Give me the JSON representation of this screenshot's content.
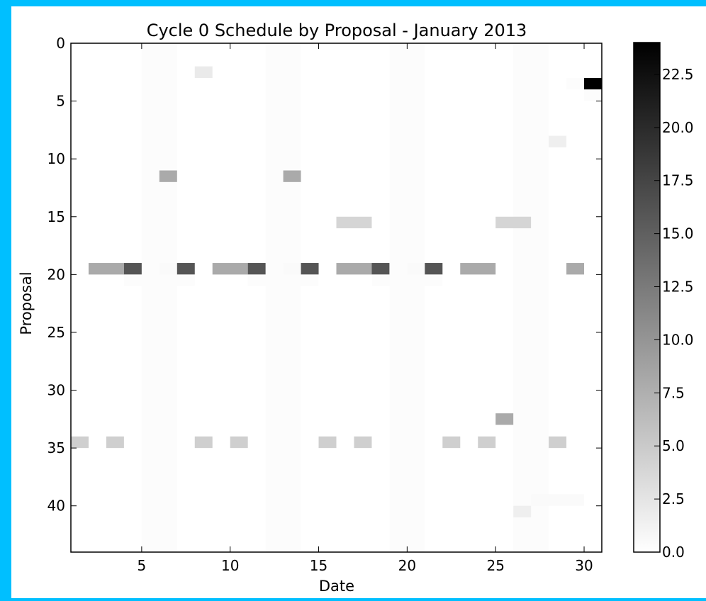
{
  "chart_data": {
    "type": "heatmap",
    "title": "Cycle 0 Schedule by Proposal - January 2013",
    "xlabel": "Date",
    "ylabel": "Proposal",
    "xlim": [
      1,
      31
    ],
    "ylim": [
      44,
      0
    ],
    "x_ticks": [
      5,
      10,
      15,
      20,
      25,
      30
    ],
    "y_ticks": [
      0,
      5,
      10,
      15,
      20,
      25,
      30,
      35,
      40
    ],
    "grid": false,
    "colormap": "gray_r",
    "colorbar": {
      "range": [
        0,
        24
      ],
      "ticks": [
        "0.0",
        "2.5",
        "5.0",
        "7.5",
        "10.0",
        "12.5",
        "15.0",
        "17.5",
        "20.0",
        "22.5"
      ]
    },
    "background_bands": {
      "x_start": [
        5,
        12,
        19,
        26
      ],
      "width": 2,
      "value": 0.3
    },
    "cells": [
      {
        "x": 8,
        "y": 2,
        "w": 1,
        "value": 2.0
      },
      {
        "x": 29,
        "y": 3,
        "w": 1,
        "value": 0.3
      },
      {
        "x": 30,
        "y": 3,
        "w": 1,
        "value": 24.0
      },
      {
        "x": 30,
        "y": 4,
        "w": 1,
        "value": 0.3
      },
      {
        "x": 28,
        "y": 8,
        "w": 1,
        "value": 1.5
      },
      {
        "x": 6,
        "y": 11,
        "w": 1,
        "value": 8.0
      },
      {
        "x": 13,
        "y": 11,
        "w": 1,
        "value": 8.0
      },
      {
        "x": 16,
        "y": 15,
        "w": 2,
        "value": 4.0
      },
      {
        "x": 25,
        "y": 15,
        "w": 2,
        "value": 4.0
      },
      {
        "x": 2,
        "y": 19,
        "w": 2,
        "value": 8.0
      },
      {
        "x": 4,
        "y": 19,
        "w": 1,
        "value": 16.0
      },
      {
        "x": 6,
        "y": 19,
        "w": 1,
        "value": 0.5
      },
      {
        "x": 7,
        "y": 19,
        "w": 1,
        "value": 16.0
      },
      {
        "x": 9,
        "y": 19,
        "w": 2,
        "value": 8.0
      },
      {
        "x": 11,
        "y": 19,
        "w": 1,
        "value": 16.0
      },
      {
        "x": 13,
        "y": 19,
        "w": 1,
        "value": 0.5
      },
      {
        "x": 14,
        "y": 19,
        "w": 1,
        "value": 16.0
      },
      {
        "x": 16,
        "y": 19,
        "w": 2,
        "value": 8.0
      },
      {
        "x": 18,
        "y": 19,
        "w": 1,
        "value": 16.0
      },
      {
        "x": 20,
        "y": 19,
        "w": 1,
        "value": 0.5
      },
      {
        "x": 21,
        "y": 19,
        "w": 1,
        "value": 16.0
      },
      {
        "x": 23,
        "y": 19,
        "w": 2,
        "value": 8.0
      },
      {
        "x": 29,
        "y": 19,
        "w": 1,
        "value": 8.0
      },
      {
        "x": 4,
        "y": 20,
        "w": 1,
        "value": 0.3
      },
      {
        "x": 7,
        "y": 20,
        "w": 1,
        "value": 0.3
      },
      {
        "x": 11,
        "y": 20,
        "w": 1,
        "value": 0.3
      },
      {
        "x": 14,
        "y": 20,
        "w": 1,
        "value": 0.3
      },
      {
        "x": 18,
        "y": 20,
        "w": 1,
        "value": 0.3
      },
      {
        "x": 21,
        "y": 20,
        "w": 1,
        "value": 0.3
      },
      {
        "x": 25,
        "y": 32,
        "w": 1,
        "value": 8.0
      },
      {
        "x": 1,
        "y": 34,
        "w": 1,
        "value": 4.5
      },
      {
        "x": 3,
        "y": 34,
        "w": 1,
        "value": 4.5
      },
      {
        "x": 8,
        "y": 34,
        "w": 1,
        "value": 4.5
      },
      {
        "x": 10,
        "y": 34,
        "w": 1,
        "value": 4.5
      },
      {
        "x": 15,
        "y": 34,
        "w": 1,
        "value": 4.5
      },
      {
        "x": 17,
        "y": 34,
        "w": 1,
        "value": 4.5
      },
      {
        "x": 22,
        "y": 34,
        "w": 1,
        "value": 4.5
      },
      {
        "x": 24,
        "y": 34,
        "w": 1,
        "value": 4.5
      },
      {
        "x": 28,
        "y": 34,
        "w": 1,
        "value": 4.5
      },
      {
        "x": 27,
        "y": 39,
        "w": 3,
        "value": 0.5
      },
      {
        "x": 26,
        "y": 40,
        "w": 1,
        "value": 1.5
      }
    ]
  }
}
